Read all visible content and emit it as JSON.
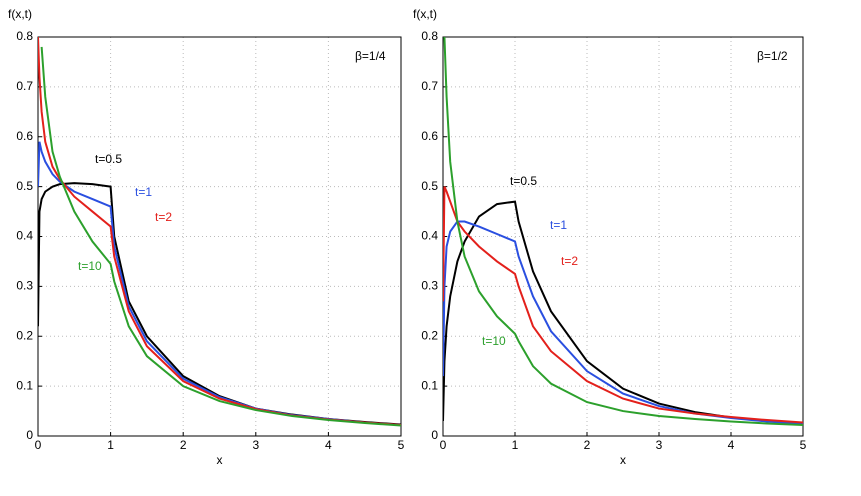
{
  "chart_data": [
    {
      "type": "line",
      "ylabel": "f(x,t)",
      "xlabel": "x",
      "annotation": "β=1/4",
      "x": [
        0,
        0.02,
        0.05,
        0.1,
        0.2,
        0.3,
        0.5,
        0.75,
        1,
        1.05,
        1.25,
        1.5,
        2,
        2.5,
        3,
        3.5,
        4,
        4.5,
        5
      ],
      "xlim": [
        0,
        5
      ],
      "ylim": [
        0,
        0.8
      ],
      "xticks": [
        0,
        1,
        2,
        3,
        4,
        5
      ],
      "yticks": [
        0,
        0.1,
        0.2,
        0.3,
        0.4,
        0.5,
        0.6,
        0.7,
        0.8
      ],
      "grid": true,
      "series": [
        {
          "name": "t=0.5",
          "color": "#000000",
          "values": [
            0.22,
            0.45,
            0.475,
            0.49,
            0.5,
            0.505,
            0.507,
            0.505,
            0.5,
            0.4,
            0.27,
            0.2,
            0.12,
            0.08,
            0.055,
            0.043,
            0.034,
            0.028,
            0.023
          ]
        },
        {
          "name": "t=1",
          "color": "#2a4fe0",
          "values": [
            0.5,
            0.59,
            0.57,
            0.55,
            0.525,
            0.51,
            0.49,
            0.475,
            0.46,
            0.38,
            0.26,
            0.19,
            0.115,
            0.078,
            0.055,
            0.042,
            0.034,
            0.027,
            0.022
          ]
        },
        {
          "name": "t=2",
          "color": "#e3201b",
          "values": [
            0.8,
            0.72,
            0.65,
            0.59,
            0.54,
            0.515,
            0.48,
            0.45,
            0.42,
            0.36,
            0.25,
            0.18,
            0.11,
            0.075,
            0.054,
            0.041,
            0.033,
            0.027,
            0.022
          ]
        },
        {
          "name": "t=10",
          "color": "#2ca02c",
          "values": [
            null,
            null,
            0.78,
            0.68,
            0.57,
            0.52,
            0.45,
            0.39,
            0.345,
            0.31,
            0.22,
            0.16,
            0.1,
            0.07,
            0.052,
            0.04,
            0.032,
            0.026,
            0.021
          ]
        }
      ]
    },
    {
      "type": "line",
      "ylabel": "f(x,t)",
      "xlabel": "x",
      "annotation": "β=1/2",
      "x": [
        0,
        0.02,
        0.05,
        0.1,
        0.2,
        0.3,
        0.5,
        0.75,
        1,
        1.05,
        1.25,
        1.5,
        2,
        2.5,
        3,
        3.5,
        4,
        4.5,
        5
      ],
      "xlim": [
        0,
        5
      ],
      "ylim": [
        0,
        0.8
      ],
      "xticks": [
        0,
        1,
        2,
        3,
        4,
        5
      ],
      "yticks": [
        0,
        0.1,
        0.2,
        0.3,
        0.4,
        0.5,
        0.6,
        0.7,
        0.8
      ],
      "grid": true,
      "series": [
        {
          "name": "t=0.5",
          "color": "#000000",
          "values": [
            0.03,
            0.15,
            0.22,
            0.28,
            0.35,
            0.39,
            0.44,
            0.465,
            0.47,
            0.43,
            0.33,
            0.25,
            0.15,
            0.095,
            0.065,
            0.048,
            0.037,
            0.03,
            0.025
          ]
        },
        {
          "name": "t=1",
          "color": "#2a4fe0",
          "values": [
            0.12,
            0.3,
            0.38,
            0.41,
            0.43,
            0.43,
            0.42,
            0.405,
            0.39,
            0.36,
            0.28,
            0.21,
            0.13,
            0.085,
            0.06,
            0.045,
            0.036,
            0.029,
            0.024
          ]
        },
        {
          "name": "t=2",
          "color": "#e3201b",
          "values": [
            0.27,
            0.5,
            0.49,
            0.47,
            0.43,
            0.41,
            0.38,
            0.35,
            0.325,
            0.3,
            0.22,
            0.17,
            0.11,
            0.075,
            0.055,
            0.045,
            0.038,
            0.032,
            0.027
          ]
        },
        {
          "name": "t=10",
          "color": "#2ca02c",
          "values": [
            null,
            0.8,
            0.68,
            0.55,
            0.43,
            0.36,
            0.29,
            0.24,
            0.205,
            0.19,
            0.14,
            0.105,
            0.068,
            0.05,
            0.04,
            0.034,
            0.029,
            0.025,
            0.022
          ]
        }
      ]
    }
  ]
}
